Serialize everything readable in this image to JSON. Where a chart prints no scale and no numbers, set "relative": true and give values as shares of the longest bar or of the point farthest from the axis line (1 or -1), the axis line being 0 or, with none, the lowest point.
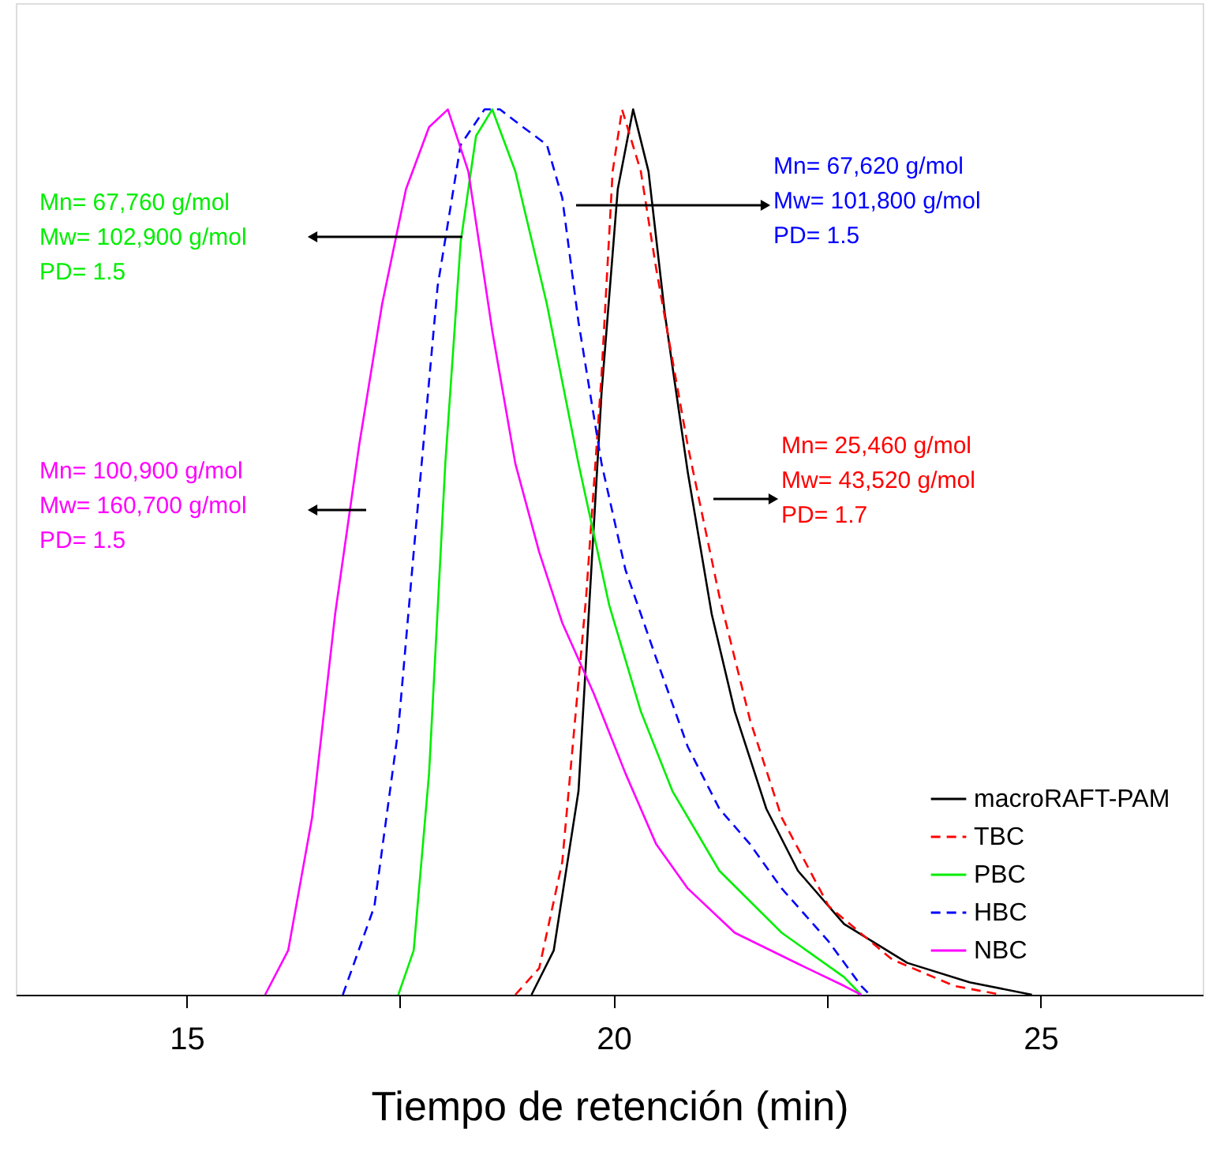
{
  "chart_data": {
    "type": "line",
    "relative": true,
    "xlabel": "Tiempo de retención (min)",
    "xlim": [
      13,
      26.9
    ],
    "xticks": [
      15,
      {
        "value": 17.5,
        "label": null
      },
      20,
      {
        "value": 22.5,
        "label": null
      },
      25
    ],
    "legend": "bottom right",
    "grid": false,
    "series": [
      {
        "name": "macroRAFT-PAM",
        "color": "#000000",
        "line_style": "solid",
        "x": [
          19.04,
          19.3,
          19.59,
          19.86,
          20.05,
          20.23,
          20.41,
          20.6,
          20.87,
          21.15,
          21.42,
          21.79,
          22.16,
          22.7,
          23.44,
          24.17,
          24.9
        ],
        "values": [
          0,
          0.05,
          0.23,
          0.68,
          0.91,
          1.0,
          0.93,
          0.77,
          0.59,
          0.43,
          0.32,
          0.21,
          0.14,
          0.08,
          0.036,
          0.014,
          0
        ]
      },
      {
        "name": "TBC",
        "color": "#ff0000",
        "line_style": "dashed",
        "x": [
          18.85,
          19.13,
          19.4,
          19.68,
          19.86,
          19.99,
          20.1,
          20.32,
          20.5,
          20.87,
          21.24,
          21.6,
          21.97,
          22.52,
          23.26,
          23.99,
          24.54
        ],
        "values": [
          0,
          0.03,
          0.15,
          0.45,
          0.7,
          0.93,
          1.0,
          0.93,
          0.82,
          0.62,
          0.45,
          0.31,
          0.2,
          0.1,
          0.04,
          0.01,
          0
        ]
      },
      {
        "name": "PBC",
        "color": "#00ee00",
        "line_style": "solid",
        "x": [
          17.48,
          17.66,
          17.84,
          18.03,
          18.21,
          18.39,
          18.58,
          18.85,
          19.22,
          19.59,
          19.95,
          20.32,
          20.69,
          21.24,
          21.97,
          22.7,
          22.9
        ],
        "values": [
          0,
          0.05,
          0.25,
          0.6,
          0.85,
          0.97,
          1.0,
          0.93,
          0.78,
          0.6,
          0.44,
          0.32,
          0.23,
          0.14,
          0.07,
          0.02,
          0
        ]
      },
      {
        "name": "HBC",
        "color": "#0000ff",
        "line_style": "dashed",
        "x": [
          16.83,
          17.2,
          17.48,
          17.66,
          17.94,
          18.21,
          18.49,
          18.67,
          18.94,
          19.22,
          19.4,
          19.59,
          19.86,
          20.14,
          20.5,
          20.87,
          21.24,
          21.6,
          21.97,
          22.52,
          22.9,
          23.0
        ],
        "values": [
          0,
          0.1,
          0.3,
          0.5,
          0.8,
          0.96,
          1.0,
          1.0,
          0.98,
          0.96,
          0.9,
          0.76,
          0.6,
          0.48,
          0.38,
          0.28,
          0.21,
          0.17,
          0.12,
          0.06,
          0.01,
          0
        ]
      },
      {
        "name": "NBC",
        "color": "#ff00ff",
        "line_style": "solid",
        "x": [
          15.92,
          16.19,
          16.47,
          16.74,
          17.02,
          17.29,
          17.57,
          17.84,
          18.06,
          18.3,
          18.58,
          18.85,
          19.13,
          19.4,
          19.77,
          20.14,
          20.5,
          20.87,
          21.42,
          22.16,
          22.7,
          22.9
        ],
        "values": [
          0,
          0.05,
          0.2,
          0.43,
          0.62,
          0.78,
          0.91,
          0.98,
          1.0,
          0.93,
          0.75,
          0.6,
          0.5,
          0.42,
          0.34,
          0.25,
          0.17,
          0.12,
          0.07,
          0.035,
          0.01,
          0
        ]
      }
    ],
    "annotations": [
      "Mn= 25,460 g/mol\nMw= 43,520 g/mol\nPD= 1.7",
      "Mn= 67,760 g/mol\nMw= 102,900 g/mol\nPD= 1.5",
      "Mn= 67,620 g/mol\nMw= 101,800 g/mol\nPD= 1.5",
      "Mn= 100,900 g/mol\nMw= 160,700 g/mol\nPD= 1.5"
    ]
  }
}
